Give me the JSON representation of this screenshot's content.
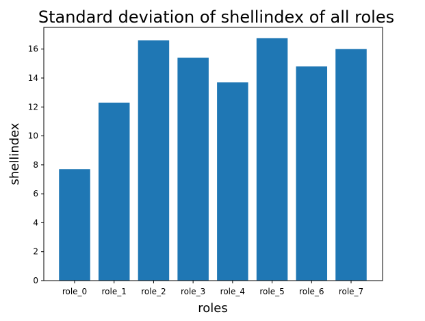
{
  "chart_data": {
    "type": "bar",
    "title": "Standard deviation of shellindex of all roles",
    "xlabel": "roles",
    "ylabel": "shellindex",
    "categories": [
      "role_0",
      "role_1",
      "role_2",
      "role_3",
      "role_4",
      "role_5",
      "role_6",
      "role_7"
    ],
    "values": [
      7.7,
      12.3,
      16.6,
      15.4,
      13.7,
      16.75,
      14.8,
      16.0
    ],
    "ylim": [
      0,
      17.5
    ],
    "yticks": [
      0,
      2,
      4,
      6,
      8,
      10,
      12,
      14,
      16
    ],
    "grid": false,
    "legend": "none",
    "bar_color": "#1f77b4"
  }
}
